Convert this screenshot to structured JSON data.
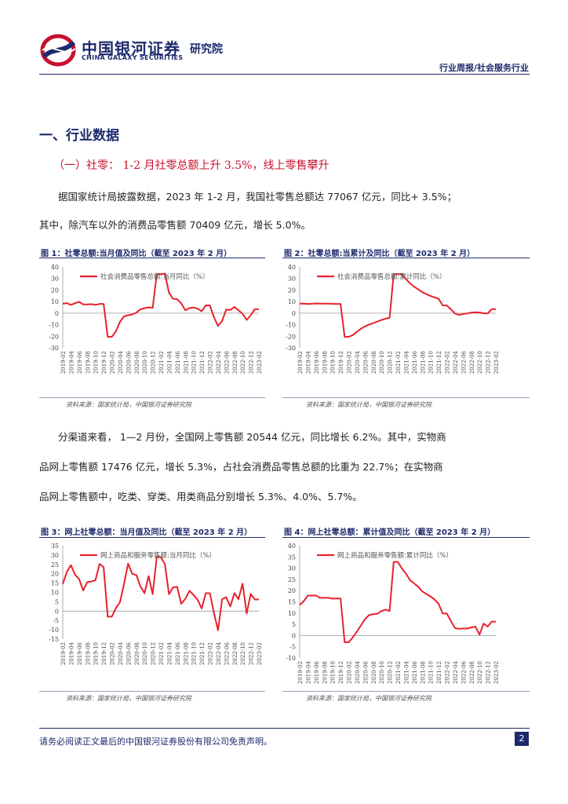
{
  "header": {
    "logo_cn": "中国银河证券",
    "logo_en": "CHINA GALAXY SECURITIES",
    "institute": "研究院",
    "report_type": "行业周报/社会服务行业"
  },
  "section_title": "一、行业数据",
  "subsection_title": "（一）社零： 1-2 月社零总额上升 3.5%，线上零售攀升",
  "paragraphs": {
    "p1_line1": "据国家统计局披露数据，2023 年 1-2 月，我国社零售总额达 77067 亿元，同比+ 3.5%；",
    "p1_line2": "其中，除汽车以外的消费品零售额 70409 亿元，增长 5.0%。",
    "p2_line1": "分渠道来看，  1—2 月份，全国网上零售额 20544 亿元，同比增长 6.2%。其中，实物商",
    "p2_line2": "品网上零售额 17476 亿元，增长 5.3%，占社会消费品零售总额的比重为 22.7%；在实物商",
    "p2_line3": "品网上零售额中，吃类、穿类、用类商品分别增长 5.3%、4.0%、5.7%。"
  },
  "figures": {
    "fig1_title": "图 1：社零总额:当月值及同比（截至 2023 年 2 月）",
    "fig2_title": "图 2：社零总额:当累计及同比（截至 2023 年 2 月）",
    "fig3_title": "图 3：网上社零总额：当月值及同比（截至 2023 年 2 月）",
    "fig4_title": "图 4：网上社零总额：累计值及同比（截至 2023 年 2 月）",
    "source": "资料来源：国家统计局，中国银河证券研究院"
  },
  "footer": {
    "disclaimer": "请务必阅读正文最后的中国银河证券股份有限公司免责声明。",
    "page": "2"
  },
  "colors": {
    "brand_navy": "#1d2a6b",
    "accent_red": "#e8212b",
    "axis_gray": "#999999"
  },
  "chart_data": [
    {
      "type": "line",
      "ylim": [
        -30,
        40
      ],
      "yticks": [
        -30,
        -20,
        -10,
        0,
        10,
        20,
        30,
        40
      ],
      "x": [
        "2019-02",
        "2019-03",
        "2019-04",
        "2019-05",
        "2019-06",
        "2019-07",
        "2019-08",
        "2019-09",
        "2019-10",
        "2019-11",
        "2019-12",
        "2020-01",
        "2020-02",
        "2020-03",
        "2020-04",
        "2020-05",
        "2020-06",
        "2020-07",
        "2020-08",
        "2020-09",
        "2020-10",
        "2020-11",
        "2020-12",
        "2021-01",
        "2021-02",
        "2021-03",
        "2021-04",
        "2021-05",
        "2021-06",
        "2021-07",
        "2021-08",
        "2021-09",
        "2021-10",
        "2021-11",
        "2021-12",
        "2022-01",
        "2022-02",
        "2022-03",
        "2022-04",
        "2022-05",
        "2022-06",
        "2022-07",
        "2022-08",
        "2022-09",
        "2022-10",
        "2022-11",
        "2022-12",
        "2023-01",
        "2023-02"
      ],
      "xticks": [
        "2019-02",
        "2019-04",
        "2019-06",
        "2019-08",
        "2019-10",
        "2019-12",
        "2020-02",
        "2020-04",
        "2020-06",
        "2020-08",
        "2020-10",
        "2020-12",
        "2021-02",
        "2021-04",
        "2021-06",
        "2021-08",
        "2021-10",
        "2021-12",
        "2022-02",
        "2022-04",
        "2022-06",
        "2022-08",
        "2022-10",
        "2022-12",
        "2023-02"
      ],
      "series": [
        {
          "name": "社会消费品零售总额:当月同比（%）",
          "values": [
            8.2,
            8.7,
            7.2,
            8.6,
            9.8,
            7.6,
            7.5,
            7.8,
            7.2,
            8.0,
            8.0,
            -20.5,
            -20.5,
            -15.8,
            -7.5,
            -2.8,
            -1.8,
            -1.1,
            0.5,
            3.3,
            4.3,
            5.0,
            4.6,
            33.8,
            33.8,
            34.2,
            17.7,
            12.4,
            12.1,
            8.5,
            2.5,
            4.4,
            4.9,
            3.9,
            1.7,
            6.7,
            6.7,
            -3.5,
            -11.1,
            -6.7,
            3.1,
            2.7,
            5.4,
            2.5,
            -0.5,
            -5.9,
            -1.8,
            3.5,
            3.5
          ]
        }
      ]
    },
    {
      "type": "line",
      "ylim": [
        -30,
        40
      ],
      "yticks": [
        -30,
        -20,
        -10,
        0,
        10,
        20,
        30,
        40
      ],
      "x": [
        "2019-02",
        "2019-03",
        "2019-04",
        "2019-05",
        "2019-06",
        "2019-07",
        "2019-08",
        "2019-09",
        "2019-10",
        "2019-11",
        "2019-12",
        "2020-01",
        "2020-02",
        "2020-03",
        "2020-04",
        "2020-05",
        "2020-06",
        "2020-07",
        "2020-08",
        "2020-09",
        "2020-10",
        "2020-11",
        "2020-12",
        "2021-01",
        "2021-02",
        "2021-03",
        "2021-04",
        "2021-05",
        "2021-06",
        "2021-07",
        "2021-08",
        "2021-09",
        "2021-10",
        "2021-11",
        "2021-12",
        "2022-01",
        "2022-02",
        "2022-03",
        "2022-04",
        "2022-05",
        "2022-06",
        "2022-07",
        "2022-08",
        "2022-09",
        "2022-10",
        "2022-11",
        "2022-12",
        "2023-01",
        "2023-02"
      ],
      "xticks": [
        "2019-02",
        "2019-04",
        "2019-06",
        "2019-08",
        "2019-10",
        "2019-12",
        "2020-02",
        "2020-04",
        "2020-06",
        "2020-08",
        "2020-10",
        "2020-12",
        "2021-02",
        "2021-04",
        "2021-06",
        "2021-08",
        "2021-10",
        "2021-12",
        "2022-02",
        "2022-04",
        "2022-06",
        "2022-08",
        "2022-10",
        "2022-12",
        "2023-02"
      ],
      "series": [
        {
          "name": "社会消费品零售总额:累计同比（%）",
          "values": [
            8.2,
            8.3,
            8.0,
            8.1,
            8.4,
            8.3,
            8.2,
            8.2,
            8.1,
            8.0,
            8.0,
            -20.5,
            -20.5,
            -19.0,
            -16.2,
            -13.5,
            -11.4,
            -9.9,
            -8.6,
            -7.2,
            -5.9,
            -4.8,
            -3.9,
            33.8,
            33.8,
            33.9,
            29.6,
            25.7,
            23.0,
            20.7,
            18.1,
            16.4,
            14.9,
            13.7,
            12.5,
            6.7,
            6.7,
            3.3,
            -0.2,
            -1.5,
            -0.7,
            -0.2,
            0.5,
            0.7,
            0.6,
            -0.1,
            -0.2,
            3.5,
            3.5
          ]
        }
      ]
    },
    {
      "type": "line",
      "ylim": [
        -15,
        35
      ],
      "yticks": [
        -15,
        -10,
        -5,
        0,
        5,
        10,
        15,
        20,
        25,
        30,
        35
      ],
      "x": [
        "2019-02",
        "2019-03",
        "2019-04",
        "2019-05",
        "2019-06",
        "2019-07",
        "2019-08",
        "2019-09",
        "2019-10",
        "2019-11",
        "2019-12",
        "2020-01",
        "2020-02",
        "2020-03",
        "2020-04",
        "2020-05",
        "2020-06",
        "2020-07",
        "2020-08",
        "2020-09",
        "2020-10",
        "2020-11",
        "2020-12",
        "2021-01",
        "2021-02",
        "2021-03",
        "2021-04",
        "2021-05",
        "2021-06",
        "2021-07",
        "2021-08",
        "2021-09",
        "2021-10",
        "2021-11",
        "2021-12",
        "2022-01",
        "2022-02",
        "2022-03",
        "2022-04",
        "2022-05",
        "2022-06",
        "2022-07",
        "2022-08",
        "2022-09",
        "2022-10",
        "2022-11",
        "2022-12",
        "2023-01",
        "2023-02"
      ],
      "xticks": [
        "2019-02",
        "2019-04",
        "2019-06",
        "2019-08",
        "2019-10",
        "2019-12",
        "2020-02",
        "2020-04",
        "2020-06",
        "2020-08",
        "2020-10",
        "2020-12",
        "2021-02",
        "2021-04",
        "2021-06",
        "2021-08",
        "2021-10",
        "2021-12",
        "2022-02",
        "2022-04",
        "2022-06",
        "2022-08",
        "2022-10",
        "2022-12",
        "2023-02"
      ],
      "series": [
        {
          "name": "网上商品和服务零售额:当月同比（%）",
          "values": [
            14.5,
            21.0,
            24.6,
            19.5,
            17.2,
            11.0,
            15.5,
            15.8,
            16.6,
            25.3,
            23.5,
            -3.0,
            -3.0,
            1.6,
            4.7,
            14.6,
            25.4,
            20.0,
            19.3,
            13.2,
            9.6,
            18.8,
            9.1,
            28.9,
            28.9,
            25.1,
            9.0,
            12.7,
            13.0,
            3.9,
            6.6,
            10.9,
            8.6,
            6.1,
            1.4,
            9.6,
            9.6,
            -0.9,
            -10.3,
            6.3,
            7.5,
            2.5,
            9.6,
            6.4,
            14.7,
            -1.3,
            9.2,
            6.2,
            6.2
          ]
        }
      ]
    },
    {
      "type": "line",
      "ylim": [
        -10,
        40
      ],
      "yticks": [
        -10,
        -5,
        0,
        5,
        10,
        15,
        20,
        25,
        30,
        35,
        40
      ],
      "x": [
        "2019-02",
        "2019-03",
        "2019-04",
        "2019-05",
        "2019-06",
        "2019-07",
        "2019-08",
        "2019-09",
        "2019-10",
        "2019-11",
        "2019-12",
        "2020-01",
        "2020-02",
        "2020-03",
        "2020-04",
        "2020-05",
        "2020-06",
        "2020-07",
        "2020-08",
        "2020-09",
        "2020-10",
        "2020-11",
        "2020-12",
        "2021-01",
        "2021-02",
        "2021-03",
        "2021-04",
        "2021-05",
        "2021-06",
        "2021-07",
        "2021-08",
        "2021-09",
        "2021-10",
        "2021-11",
        "2021-12",
        "2022-01",
        "2022-02",
        "2022-03",
        "2022-04",
        "2022-05",
        "2022-06",
        "2022-07",
        "2022-08",
        "2022-09",
        "2022-10",
        "2022-11",
        "2022-12",
        "2023-01",
        "2023-02"
      ],
      "xticks": [
        "2019-02",
        "2019-04",
        "2019-06",
        "2019-08",
        "2019-10",
        "2019-12",
        "2020-02",
        "2020-04",
        "2020-06",
        "2020-08",
        "2020-10",
        "2020-12",
        "2021-02",
        "2021-04",
        "2021-06",
        "2021-08",
        "2021-10",
        "2021-12",
        "2022-02",
        "2022-04",
        "2022-06",
        "2022-08",
        "2022-10",
        "2022-12",
        "2023-02"
      ],
      "series": [
        {
          "name": "网上商品和服务零售额:累计同比（%）",
          "values": [
            13.6,
            15.3,
            17.8,
            17.8,
            17.8,
            16.8,
            16.8,
            16.8,
            16.4,
            16.5,
            16.5,
            -3.0,
            -3.0,
            -0.8,
            1.7,
            4.5,
            7.3,
            9.1,
            9.5,
            9.7,
            10.9,
            11.5,
            10.9,
            32.8,
            32.8,
            29.9,
            27.6,
            24.7,
            23.2,
            21.7,
            19.6,
            18.5,
            17.4,
            16.0,
            14.1,
            9.8,
            9.8,
            6.5,
            3.3,
            3.0,
            3.1,
            3.1,
            3.6,
            4.0,
            0.4,
            5.3,
            4.0,
            6.2,
            6.2
          ]
        }
      ]
    }
  ]
}
